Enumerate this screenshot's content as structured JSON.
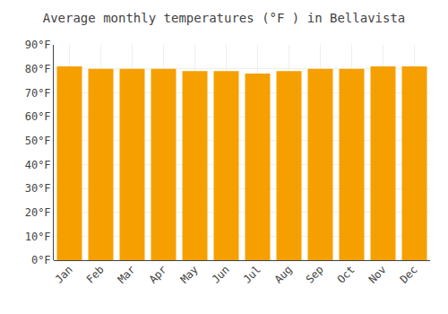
{
  "chart_data": {
    "type": "bar",
    "title": "Average monthly temperatures (°F ) in Bellavista",
    "categories": [
      "Jan",
      "Feb",
      "Mar",
      "Apr",
      "May",
      "Jun",
      "Jul",
      "Aug",
      "Sep",
      "Oct",
      "Nov",
      "Dec"
    ],
    "values": [
      81,
      80,
      80,
      80,
      79,
      79,
      78,
      79,
      80,
      80,
      81,
      81
    ],
    "color": "#F5A000",
    "ylim": [
      0,
      90
    ],
    "yticks": [
      {
        "value": 0,
        "label": "0°F"
      },
      {
        "value": 10,
        "label": "10°F"
      },
      {
        "value": 20,
        "label": "20°F"
      },
      {
        "value": 30,
        "label": "30°F"
      },
      {
        "value": 40,
        "label": "40°F"
      },
      {
        "value": 50,
        "label": "50°F"
      },
      {
        "value": 60,
        "label": "60°F"
      },
      {
        "value": 70,
        "label": "70°F"
      },
      {
        "value": 80,
        "label": "80°F"
      },
      {
        "value": 90,
        "label": "90°F"
      }
    ],
    "grid": true
  }
}
